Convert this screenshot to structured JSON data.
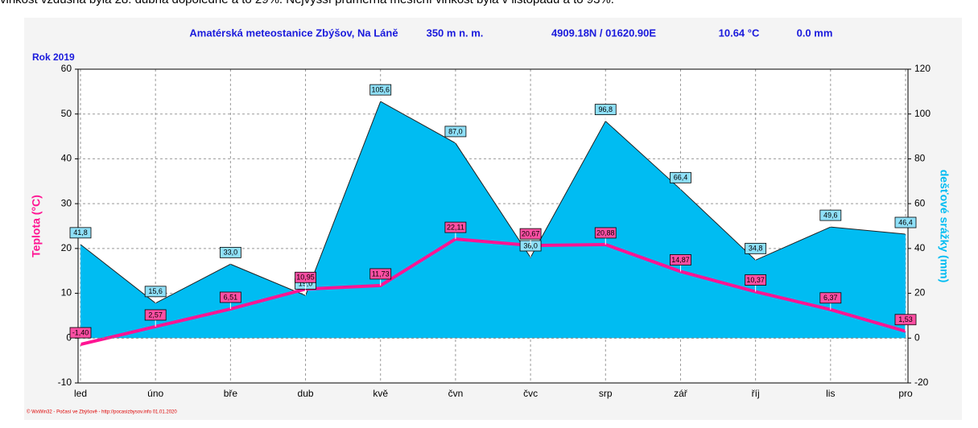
{
  "caption": "vlhkost vzdušná byla 28. dubna dopoledne a to 29%. Nejvyšší průměrná měsíční vlhkost byla v listopadu a to 93%.",
  "chart_data": {
    "type": "line-area",
    "title": "Amatérská meteostanice Zbýšov, Na Láně",
    "header": [
      "350 m n. m.",
      "4909.18N / 01620.90E",
      "10.64 °C",
      "0.0 mm"
    ],
    "subtitle": "Rok 2019",
    "ylabel": "Teplota  (°C)",
    "y2label": "dešťové srážky  (mm)",
    "footer": "© WxWin32 - Počasí ve Zbýšově - http://pocasizbysov.info  01.01.2020",
    "categories": [
      "led",
      "úno",
      "bře",
      "dub",
      "kvě",
      "čvn",
      "čvc",
      "srp",
      "zář",
      "říj",
      "lis",
      "pro"
    ],
    "series": [
      {
        "name": "dešťové srážky",
        "kind": "area",
        "axis": "y2",
        "color": "#00bcf2",
        "values": [
          41.8,
          15.6,
          33.0,
          19.0,
          105.6,
          87.0,
          36.0,
          96.8,
          66.4,
          34.8,
          49.6,
          46.4
        ],
        "value_labels": [
          "41,8",
          "15,6",
          "33,0",
          "19,0",
          "105,6",
          "87,0",
          "36,0",
          "96,8",
          "66,4",
          "34,8",
          "49,6",
          "46,4"
        ]
      },
      {
        "name": "Teplota",
        "kind": "line",
        "axis": "y",
        "color": "#ff1493",
        "values": [
          -1.4,
          2.57,
          6.51,
          10.95,
          11.73,
          22.11,
          20.67,
          20.88,
          14.87,
          10.37,
          6.37,
          1.53
        ],
        "value_labels": [
          "-1,40",
          "2,57",
          "6,51",
          "10,95",
          "11,73",
          "22,11",
          "20,67",
          "20,88",
          "14,87",
          "10,37",
          "6,37",
          "1,53"
        ]
      }
    ],
    "ylim": [
      -10,
      60
    ],
    "yticks": [
      -10,
      0,
      10,
      20,
      30,
      40,
      50,
      60
    ],
    "y2lim": [
      -20,
      120
    ],
    "y2ticks": [
      -20,
      0,
      20,
      40,
      60,
      80,
      100,
      120
    ],
    "grid": true
  }
}
